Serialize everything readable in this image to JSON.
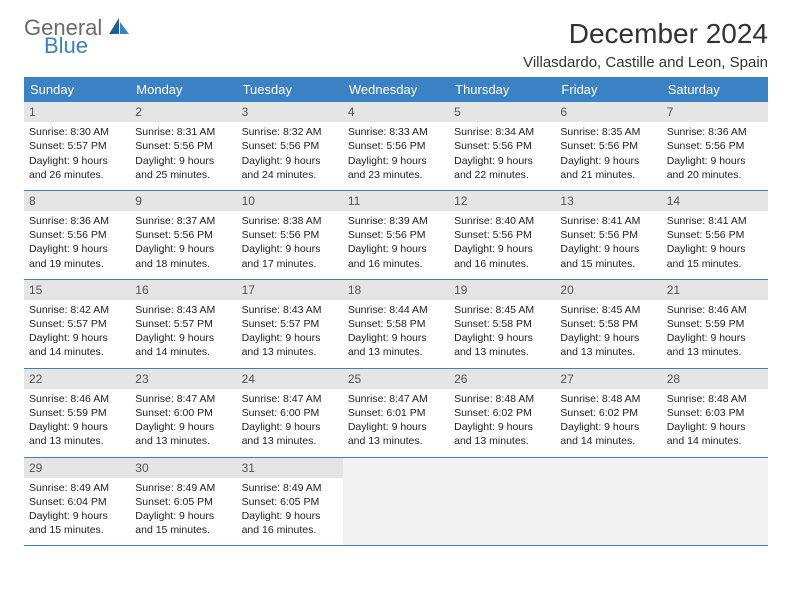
{
  "brand": {
    "line1": "General",
    "line2": "Blue"
  },
  "title": "December 2024",
  "location": "Villasdardo, Castille and Leon, Spain",
  "colors": {
    "header_bg": "#3b82c4",
    "header_text": "#ffffff",
    "daynum_bg": "#e5e5e5",
    "border": "#3b82c4",
    "logo_gray": "#6b6b6b",
    "logo_blue": "#3b82c4"
  },
  "weekdays": [
    "Sunday",
    "Monday",
    "Tuesday",
    "Wednesday",
    "Thursday",
    "Friday",
    "Saturday"
  ],
  "weeks": [
    [
      {
        "n": "1",
        "sunrise": "Sunrise: 8:30 AM",
        "sunset": "Sunset: 5:57 PM",
        "d1": "Daylight: 9 hours",
        "d2": "and 26 minutes."
      },
      {
        "n": "2",
        "sunrise": "Sunrise: 8:31 AM",
        "sunset": "Sunset: 5:56 PM",
        "d1": "Daylight: 9 hours",
        "d2": "and 25 minutes."
      },
      {
        "n": "3",
        "sunrise": "Sunrise: 8:32 AM",
        "sunset": "Sunset: 5:56 PM",
        "d1": "Daylight: 9 hours",
        "d2": "and 24 minutes."
      },
      {
        "n": "4",
        "sunrise": "Sunrise: 8:33 AM",
        "sunset": "Sunset: 5:56 PM",
        "d1": "Daylight: 9 hours",
        "d2": "and 23 minutes."
      },
      {
        "n": "5",
        "sunrise": "Sunrise: 8:34 AM",
        "sunset": "Sunset: 5:56 PM",
        "d1": "Daylight: 9 hours",
        "d2": "and 22 minutes."
      },
      {
        "n": "6",
        "sunrise": "Sunrise: 8:35 AM",
        "sunset": "Sunset: 5:56 PM",
        "d1": "Daylight: 9 hours",
        "d2": "and 21 minutes."
      },
      {
        "n": "7",
        "sunrise": "Sunrise: 8:36 AM",
        "sunset": "Sunset: 5:56 PM",
        "d1": "Daylight: 9 hours",
        "d2": "and 20 minutes."
      }
    ],
    [
      {
        "n": "8",
        "sunrise": "Sunrise: 8:36 AM",
        "sunset": "Sunset: 5:56 PM",
        "d1": "Daylight: 9 hours",
        "d2": "and 19 minutes."
      },
      {
        "n": "9",
        "sunrise": "Sunrise: 8:37 AM",
        "sunset": "Sunset: 5:56 PM",
        "d1": "Daylight: 9 hours",
        "d2": "and 18 minutes."
      },
      {
        "n": "10",
        "sunrise": "Sunrise: 8:38 AM",
        "sunset": "Sunset: 5:56 PM",
        "d1": "Daylight: 9 hours",
        "d2": "and 17 minutes."
      },
      {
        "n": "11",
        "sunrise": "Sunrise: 8:39 AM",
        "sunset": "Sunset: 5:56 PM",
        "d1": "Daylight: 9 hours",
        "d2": "and 16 minutes."
      },
      {
        "n": "12",
        "sunrise": "Sunrise: 8:40 AM",
        "sunset": "Sunset: 5:56 PM",
        "d1": "Daylight: 9 hours",
        "d2": "and 16 minutes."
      },
      {
        "n": "13",
        "sunrise": "Sunrise: 8:41 AM",
        "sunset": "Sunset: 5:56 PM",
        "d1": "Daylight: 9 hours",
        "d2": "and 15 minutes."
      },
      {
        "n": "14",
        "sunrise": "Sunrise: 8:41 AM",
        "sunset": "Sunset: 5:56 PM",
        "d1": "Daylight: 9 hours",
        "d2": "and 15 minutes."
      }
    ],
    [
      {
        "n": "15",
        "sunrise": "Sunrise: 8:42 AM",
        "sunset": "Sunset: 5:57 PM",
        "d1": "Daylight: 9 hours",
        "d2": "and 14 minutes."
      },
      {
        "n": "16",
        "sunrise": "Sunrise: 8:43 AM",
        "sunset": "Sunset: 5:57 PM",
        "d1": "Daylight: 9 hours",
        "d2": "and 14 minutes."
      },
      {
        "n": "17",
        "sunrise": "Sunrise: 8:43 AM",
        "sunset": "Sunset: 5:57 PM",
        "d1": "Daylight: 9 hours",
        "d2": "and 13 minutes."
      },
      {
        "n": "18",
        "sunrise": "Sunrise: 8:44 AM",
        "sunset": "Sunset: 5:58 PM",
        "d1": "Daylight: 9 hours",
        "d2": "and 13 minutes."
      },
      {
        "n": "19",
        "sunrise": "Sunrise: 8:45 AM",
        "sunset": "Sunset: 5:58 PM",
        "d1": "Daylight: 9 hours",
        "d2": "and 13 minutes."
      },
      {
        "n": "20",
        "sunrise": "Sunrise: 8:45 AM",
        "sunset": "Sunset: 5:58 PM",
        "d1": "Daylight: 9 hours",
        "d2": "and 13 minutes."
      },
      {
        "n": "21",
        "sunrise": "Sunrise: 8:46 AM",
        "sunset": "Sunset: 5:59 PM",
        "d1": "Daylight: 9 hours",
        "d2": "and 13 minutes."
      }
    ],
    [
      {
        "n": "22",
        "sunrise": "Sunrise: 8:46 AM",
        "sunset": "Sunset: 5:59 PM",
        "d1": "Daylight: 9 hours",
        "d2": "and 13 minutes."
      },
      {
        "n": "23",
        "sunrise": "Sunrise: 8:47 AM",
        "sunset": "Sunset: 6:00 PM",
        "d1": "Daylight: 9 hours",
        "d2": "and 13 minutes."
      },
      {
        "n": "24",
        "sunrise": "Sunrise: 8:47 AM",
        "sunset": "Sunset: 6:00 PM",
        "d1": "Daylight: 9 hours",
        "d2": "and 13 minutes."
      },
      {
        "n": "25",
        "sunrise": "Sunrise: 8:47 AM",
        "sunset": "Sunset: 6:01 PM",
        "d1": "Daylight: 9 hours",
        "d2": "and 13 minutes."
      },
      {
        "n": "26",
        "sunrise": "Sunrise: 8:48 AM",
        "sunset": "Sunset: 6:02 PM",
        "d1": "Daylight: 9 hours",
        "d2": "and 13 minutes."
      },
      {
        "n": "27",
        "sunrise": "Sunrise: 8:48 AM",
        "sunset": "Sunset: 6:02 PM",
        "d1": "Daylight: 9 hours",
        "d2": "and 14 minutes."
      },
      {
        "n": "28",
        "sunrise": "Sunrise: 8:48 AM",
        "sunset": "Sunset: 6:03 PM",
        "d1": "Daylight: 9 hours",
        "d2": "and 14 minutes."
      }
    ],
    [
      {
        "n": "29",
        "sunrise": "Sunrise: 8:49 AM",
        "sunset": "Sunset: 6:04 PM",
        "d1": "Daylight: 9 hours",
        "d2": "and 15 minutes."
      },
      {
        "n": "30",
        "sunrise": "Sunrise: 8:49 AM",
        "sunset": "Sunset: 6:05 PM",
        "d1": "Daylight: 9 hours",
        "d2": "and 15 minutes."
      },
      {
        "n": "31",
        "sunrise": "Sunrise: 8:49 AM",
        "sunset": "Sunset: 6:05 PM",
        "d1": "Daylight: 9 hours",
        "d2": "and 16 minutes."
      },
      {
        "empty": true
      },
      {
        "empty": true
      },
      {
        "empty": true
      },
      {
        "empty": true
      }
    ]
  ]
}
